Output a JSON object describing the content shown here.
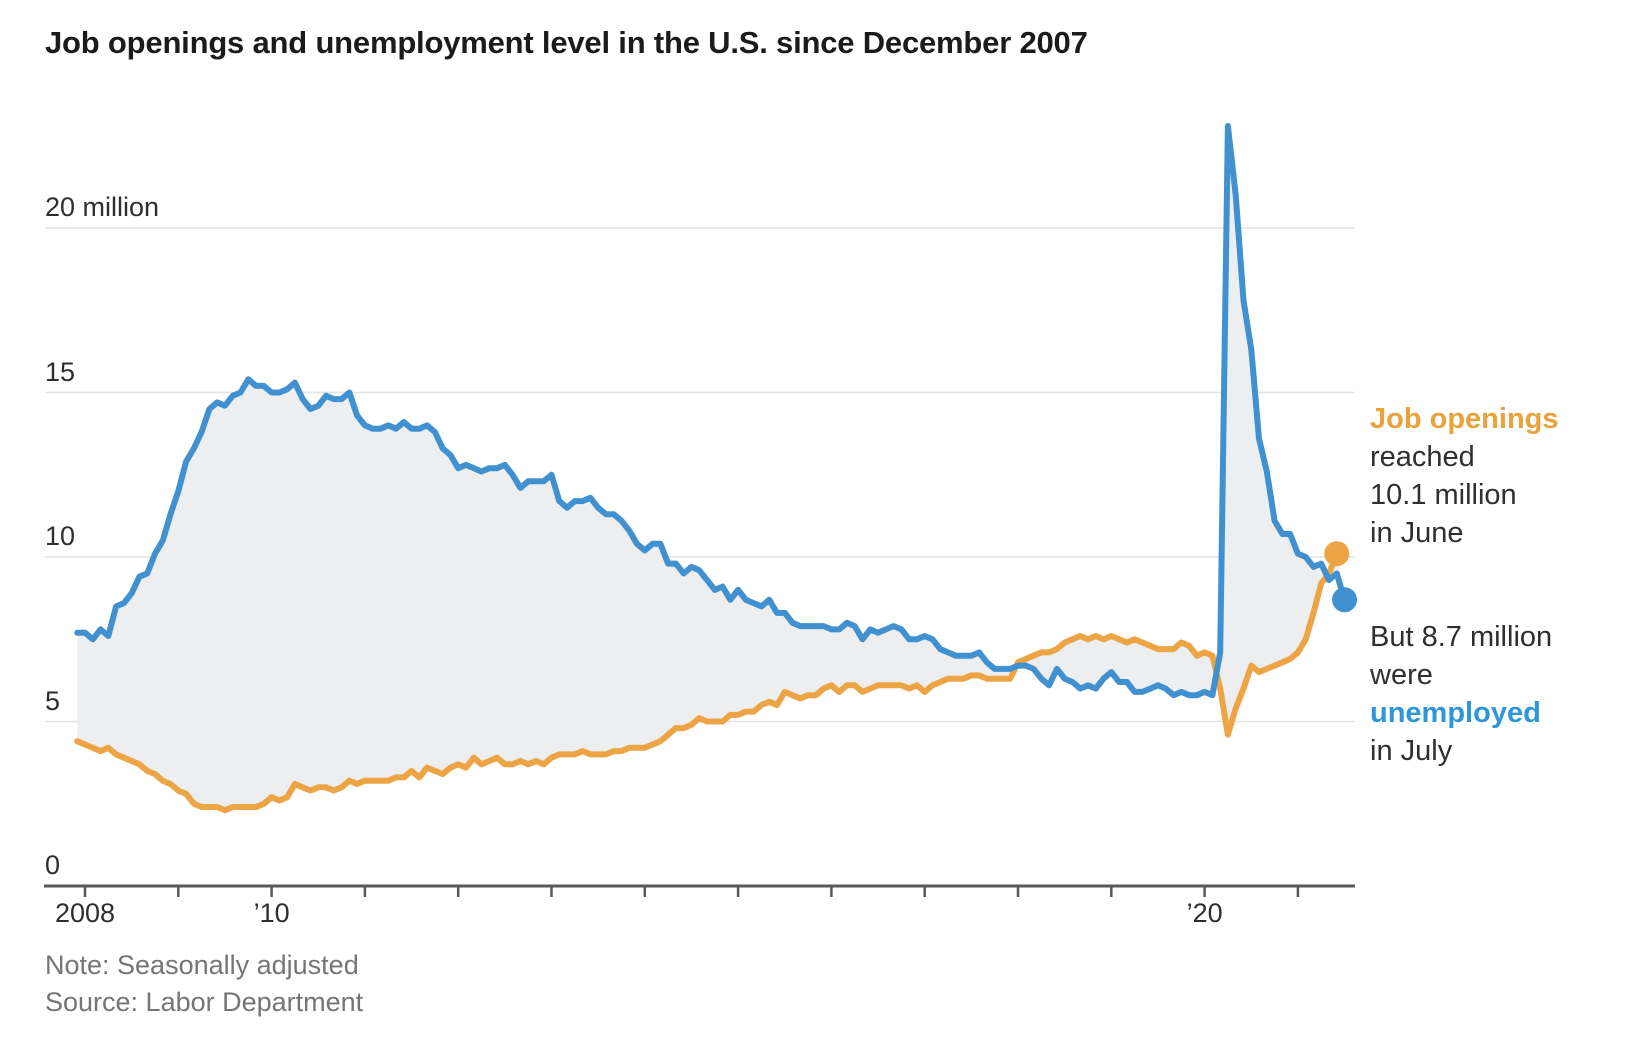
{
  "title": "Job openings and unemployment level in the U.S. since December 2007",
  "note": "Note: Seasonally adjusted",
  "source": "Source: Labor Department",
  "annotations": {
    "openings": {
      "line1": "Job openings",
      "line2": "reached",
      "line3": "10.1 million",
      "line4": "in June"
    },
    "unemployed": {
      "line1": "But 8.7 million",
      "line2": "were",
      "line3": "unemployed",
      "line4": "in July"
    }
  },
  "colors": {
    "openings": "#eda445",
    "unemployed": "#4190cf",
    "fill": "#eceef0",
    "grid": "#e3e3e3",
    "axis": "#58595b"
  },
  "chart_data": {
    "type": "line",
    "title": "Job openings and unemployment level in the U.S. since December 2007",
    "unit": "million",
    "x_start": "2007-12",
    "frequency": "monthly",
    "ylim": [
      0,
      23.5
    ],
    "y_axis": {
      "ticks": [
        0,
        5,
        10,
        15,
        20
      ],
      "tick_labels": [
        "0",
        "5",
        "10",
        "15",
        "20 million"
      ]
    },
    "x_axis": {
      "tick_years": [
        2008,
        2009,
        2010,
        2011,
        2012,
        2013,
        2014,
        2015,
        2016,
        2017,
        2018,
        2019,
        2020,
        2021
      ],
      "labels": [
        {
          "year": 2008,
          "text": "2008"
        },
        {
          "year": 2010,
          "text": "’10"
        },
        {
          "year": 2020,
          "text": "’20"
        }
      ]
    },
    "series": [
      {
        "name": "Unemployment level",
        "color_key": "unemployed",
        "end": "2021-07",
        "values": [
          7.7,
          7.7,
          7.5,
          7.8,
          7.6,
          8.5,
          8.6,
          8.9,
          9.4,
          9.5,
          10.1,
          10.5,
          11.3,
          12.0,
          12.9,
          13.3,
          13.8,
          14.5,
          14.7,
          14.6,
          14.9,
          15.0,
          15.4,
          15.2,
          15.2,
          15.0,
          15.0,
          15.1,
          15.3,
          14.8,
          14.5,
          14.6,
          14.9,
          14.8,
          14.8,
          15.0,
          14.3,
          14.0,
          13.9,
          13.9,
          14.0,
          13.9,
          14.1,
          13.9,
          13.9,
          14.0,
          13.8,
          13.3,
          13.1,
          12.7,
          12.8,
          12.7,
          12.6,
          12.7,
          12.7,
          12.8,
          12.5,
          12.1,
          12.3,
          12.3,
          12.3,
          12.5,
          11.7,
          11.5,
          11.7,
          11.7,
          11.8,
          11.5,
          11.3,
          11.3,
          11.1,
          10.8,
          10.4,
          10.2,
          10.4,
          10.4,
          9.8,
          9.8,
          9.5,
          9.7,
          9.6,
          9.3,
          9.0,
          9.1,
          8.7,
          9.0,
          8.7,
          8.6,
          8.5,
          8.7,
          8.3,
          8.3,
          8.0,
          7.9,
          7.9,
          7.9,
          7.9,
          7.8,
          7.8,
          8.0,
          7.9,
          7.5,
          7.8,
          7.7,
          7.8,
          7.9,
          7.8,
          7.5,
          7.5,
          7.6,
          7.5,
          7.2,
          7.1,
          7.0,
          7.0,
          7.0,
          7.1,
          6.8,
          6.6,
          6.6,
          6.6,
          6.7,
          6.7,
          6.6,
          6.3,
          6.1,
          6.6,
          6.3,
          6.2,
          6.0,
          6.1,
          6.0,
          6.3,
          6.5,
          6.2,
          6.2,
          5.9,
          5.9,
          6.0,
          6.1,
          6.0,
          5.8,
          5.9,
          5.8,
          5.8,
          5.9,
          5.8,
          7.1,
          23.1,
          21.0,
          17.8,
          16.3,
          13.6,
          12.6,
          11.1,
          10.7,
          10.7,
          10.1,
          10.0,
          9.7,
          9.8,
          9.3,
          9.5,
          8.7
        ]
      },
      {
        "name": "Job openings",
        "color_key": "openings",
        "end": "2021-06",
        "values": [
          4.4,
          4.3,
          4.2,
          4.1,
          4.2,
          4.0,
          3.9,
          3.8,
          3.7,
          3.5,
          3.4,
          3.2,
          3.1,
          2.9,
          2.8,
          2.5,
          2.4,
          2.4,
          2.4,
          2.3,
          2.4,
          2.4,
          2.4,
          2.4,
          2.5,
          2.7,
          2.6,
          2.7,
          3.1,
          3.0,
          2.9,
          3.0,
          3.0,
          2.9,
          3.0,
          3.2,
          3.1,
          3.2,
          3.2,
          3.2,
          3.2,
          3.3,
          3.3,
          3.5,
          3.3,
          3.6,
          3.5,
          3.4,
          3.6,
          3.7,
          3.6,
          3.9,
          3.7,
          3.8,
          3.9,
          3.7,
          3.7,
          3.8,
          3.7,
          3.8,
          3.7,
          3.9,
          4.0,
          4.0,
          4.0,
          4.1,
          4.0,
          4.0,
          4.0,
          4.1,
          4.1,
          4.2,
          4.2,
          4.2,
          4.3,
          4.4,
          4.6,
          4.8,
          4.8,
          4.9,
          5.1,
          5.0,
          5.0,
          5.0,
          5.2,
          5.2,
          5.3,
          5.3,
          5.5,
          5.6,
          5.5,
          5.9,
          5.8,
          5.7,
          5.8,
          5.8,
          6.0,
          6.1,
          5.9,
          6.1,
          6.1,
          5.9,
          6.0,
          6.1,
          6.1,
          6.1,
          6.1,
          6.0,
          6.1,
          5.9,
          6.1,
          6.2,
          6.3,
          6.3,
          6.3,
          6.4,
          6.4,
          6.3,
          6.3,
          6.3,
          6.3,
          6.8,
          6.9,
          7.0,
          7.1,
          7.1,
          7.2,
          7.4,
          7.5,
          7.6,
          7.5,
          7.6,
          7.5,
          7.6,
          7.5,
          7.4,
          7.5,
          7.4,
          7.3,
          7.2,
          7.2,
          7.2,
          7.4,
          7.3,
          7.0,
          7.1,
          7.0,
          6.0,
          4.6,
          5.4,
          6.0,
          6.7,
          6.5,
          6.6,
          6.7,
          6.8,
          6.9,
          7.1,
          7.5,
          8.3,
          9.2,
          9.5,
          10.1
        ]
      }
    ],
    "endpoints": [
      {
        "series": "Job openings",
        "month": "2021-06",
        "value": 10.1
      },
      {
        "series": "Unemployment level",
        "month": "2021-07",
        "value": 8.7
      }
    ]
  }
}
